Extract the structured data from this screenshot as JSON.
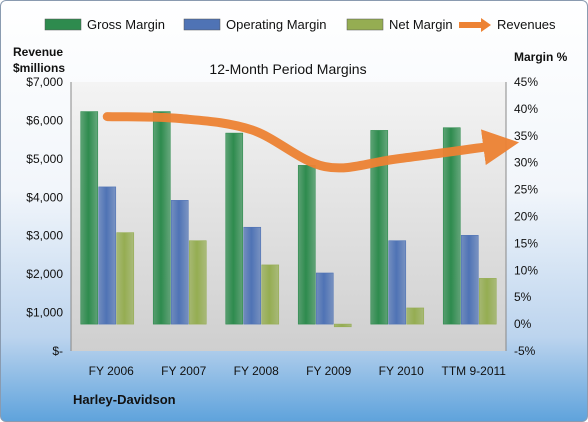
{
  "chart_data": {
    "type": "bar",
    "title": "12-Month Period Margins",
    "left_axis_label": [
      "Revenue",
      "$millions"
    ],
    "right_axis_label": "Margin %",
    "footer": "Harley-Davidson",
    "categories": [
      "FY 2006",
      "FY 2007",
      "FY 2008",
      "FY 2009",
      "FY 2010",
      "TTM 9-2011"
    ],
    "left_ticks": [
      "$-",
      "$1,000",
      "$2,000",
      "$3,000",
      "$4,000",
      "$5,000",
      "$6,000",
      "$7,000"
    ],
    "right_ticks": [
      "-5%",
      "0%",
      "5%",
      "10%",
      "15%",
      "20%",
      "25%",
      "30%",
      "35%",
      "40%",
      "45%"
    ],
    "left_ylim": [
      0,
      7000
    ],
    "right_ylim": [
      -5,
      45
    ],
    "legend_position": "top",
    "grid": false,
    "series": [
      {
        "name": "Gross Margin",
        "axis": "right",
        "color": "#2e8b4e",
        "values": [
          39.5,
          39.5,
          35.5,
          29.5,
          36,
          36.5
        ]
      },
      {
        "name": "Operating Margin",
        "axis": "right",
        "color": "#4f73b5",
        "values": [
          25.5,
          23,
          18,
          9.5,
          15.5,
          16.5
        ]
      },
      {
        "name": "Net Margin",
        "axis": "right",
        "color": "#95ad52",
        "values": [
          17,
          15.5,
          11,
          -0.5,
          3,
          8.5
        ]
      },
      {
        "name": "Revenues",
        "axis": "left",
        "type": "line",
        "color": "#ed8233",
        "values": [
          6100,
          6050,
          5750,
          4800,
          5000,
          5350
        ]
      }
    ]
  }
}
